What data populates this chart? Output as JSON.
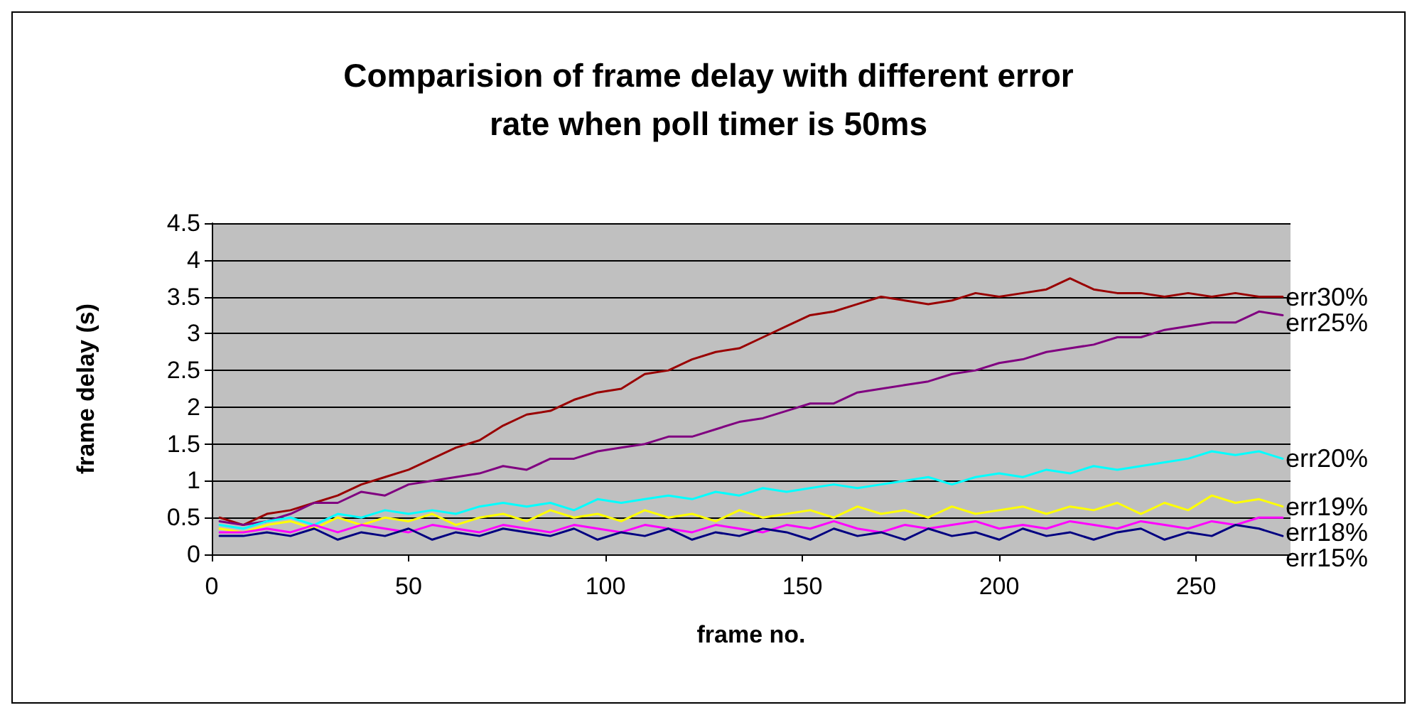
{
  "chart_data": {
    "type": "line",
    "title": "Comparision of frame delay with different error\nrate when poll timer is 50ms",
    "xlabel": "frame no.",
    "ylabel": "frame delay (s)",
    "xlim": [
      0,
      274
    ],
    "xticks": [
      0,
      50,
      100,
      150,
      200,
      250
    ],
    "ylim": [
      0,
      4.5
    ],
    "yticks": [
      0,
      0.5,
      1,
      1.5,
      2,
      2.5,
      3,
      3.5,
      4,
      4.5
    ],
    "grid": "y",
    "legend": false,
    "marker": "none",
    "line_style": "solid",
    "x": [
      2,
      8,
      14,
      20,
      26,
      32,
      38,
      44,
      50,
      56,
      62,
      68,
      74,
      80,
      86,
      92,
      98,
      104,
      110,
      116,
      122,
      128,
      134,
      140,
      146,
      152,
      158,
      164,
      170,
      176,
      182,
      188,
      194,
      200,
      206,
      212,
      218,
      224,
      230,
      236,
      242,
      248,
      254,
      260,
      266,
      272
    ],
    "series": [
      {
        "name": "err30%",
        "color": "#990000",
        "values": [
          0.5,
          0.4,
          0.55,
          0.6,
          0.7,
          0.8,
          0.95,
          1.05,
          1.15,
          1.3,
          1.45,
          1.55,
          1.75,
          1.9,
          1.95,
          2.1,
          2.2,
          2.25,
          2.45,
          2.5,
          2.65,
          2.75,
          2.8,
          2.95,
          3.1,
          3.25,
          3.3,
          3.4,
          3.5,
          3.45,
          3.4,
          3.45,
          3.55,
          3.5,
          3.55,
          3.6,
          3.75,
          3.6,
          3.55,
          3.55,
          3.5,
          3.55,
          3.5,
          3.55,
          3.5,
          3.5
        ]
      },
      {
        "name": "err25%",
        "color": "#800080",
        "values": [
          0.45,
          0.4,
          0.45,
          0.55,
          0.7,
          0.7,
          0.85,
          0.8,
          0.95,
          1.0,
          1.05,
          1.1,
          1.2,
          1.15,
          1.3,
          1.3,
          1.4,
          1.45,
          1.5,
          1.6,
          1.6,
          1.7,
          1.8,
          1.85,
          1.95,
          2.05,
          2.05,
          2.2,
          2.25,
          2.3,
          2.35,
          2.45,
          2.5,
          2.6,
          2.65,
          2.75,
          2.8,
          2.85,
          2.95,
          2.95,
          3.05,
          3.1,
          3.15,
          3.15,
          3.3,
          3.25
        ]
      },
      {
        "name": "err20%",
        "color": "#00ffff",
        "values": [
          0.4,
          0.35,
          0.45,
          0.5,
          0.4,
          0.55,
          0.5,
          0.6,
          0.55,
          0.6,
          0.55,
          0.65,
          0.7,
          0.65,
          0.7,
          0.6,
          0.75,
          0.7,
          0.75,
          0.8,
          0.75,
          0.85,
          0.8,
          0.9,
          0.85,
          0.9,
          0.95,
          0.9,
          0.95,
          1.0,
          1.05,
          0.95,
          1.05,
          1.1,
          1.05,
          1.15,
          1.1,
          1.2,
          1.15,
          1.2,
          1.25,
          1.3,
          1.4,
          1.35,
          1.4,
          1.3
        ]
      },
      {
        "name": "err19%",
        "color": "#ffff00",
        "values": [
          0.35,
          0.3,
          0.4,
          0.45,
          0.35,
          0.5,
          0.4,
          0.5,
          0.45,
          0.55,
          0.4,
          0.5,
          0.55,
          0.45,
          0.6,
          0.5,
          0.55,
          0.45,
          0.6,
          0.5,
          0.55,
          0.45,
          0.6,
          0.5,
          0.55,
          0.6,
          0.5,
          0.65,
          0.55,
          0.6,
          0.5,
          0.65,
          0.55,
          0.6,
          0.65,
          0.55,
          0.65,
          0.6,
          0.7,
          0.55,
          0.7,
          0.6,
          0.8,
          0.7,
          0.75,
          0.65
        ]
      },
      {
        "name": "err18%",
        "color": "#ff00ff",
        "values": [
          0.3,
          0.3,
          0.35,
          0.3,
          0.4,
          0.3,
          0.4,
          0.35,
          0.3,
          0.4,
          0.35,
          0.3,
          0.4,
          0.35,
          0.3,
          0.4,
          0.35,
          0.3,
          0.4,
          0.35,
          0.3,
          0.4,
          0.35,
          0.3,
          0.4,
          0.35,
          0.45,
          0.35,
          0.3,
          0.4,
          0.35,
          0.4,
          0.45,
          0.35,
          0.4,
          0.35,
          0.45,
          0.4,
          0.35,
          0.45,
          0.4,
          0.35,
          0.45,
          0.4,
          0.5,
          0.5
        ]
      },
      {
        "name": "err15%",
        "color": "#000080",
        "values": [
          0.25,
          0.25,
          0.3,
          0.25,
          0.35,
          0.2,
          0.3,
          0.25,
          0.35,
          0.2,
          0.3,
          0.25,
          0.35,
          0.3,
          0.25,
          0.35,
          0.2,
          0.3,
          0.25,
          0.35,
          0.2,
          0.3,
          0.25,
          0.35,
          0.3,
          0.2,
          0.35,
          0.25,
          0.3,
          0.2,
          0.35,
          0.25,
          0.3,
          0.2,
          0.35,
          0.25,
          0.3,
          0.2,
          0.3,
          0.35,
          0.2,
          0.3,
          0.25,
          0.4,
          0.35,
          0.25
        ]
      }
    ]
  }
}
